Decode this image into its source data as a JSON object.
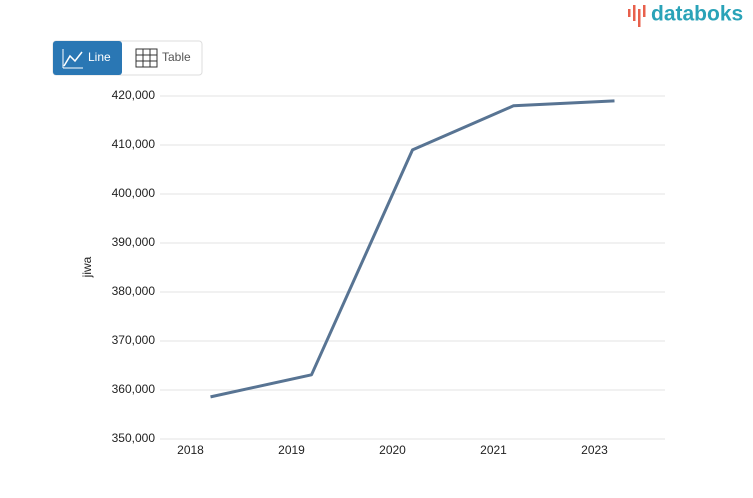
{
  "brand": "databoks",
  "controls": [
    "Line",
    "Table"
  ],
  "chart_data": {
    "type": "line",
    "y_label": "jiwa",
    "categories": [
      "2018",
      "2019",
      "2020",
      "2021",
      "2023"
    ],
    "series": [
      {
        "name": "jiwa",
        "color": "#587493",
        "values": [
          358600,
          363100,
          409000,
          418000,
          419000
        ]
      }
    ],
    "ylim": [
      350000,
      420000
    ],
    "yticks": [
      {
        "value": 350000,
        "label": "350,000"
      },
      {
        "value": 360000,
        "label": "360,000"
      },
      {
        "value": 370000,
        "label": "370,000"
      },
      {
        "value": 380000,
        "label": "380,000"
      },
      {
        "value": 390000,
        "label": "390,000"
      },
      {
        "value": 400000,
        "label": "400,000"
      },
      {
        "value": 410000,
        "label": "410,000"
      },
      {
        "value": 420000,
        "label": "420,000"
      }
    ],
    "grid": true
  }
}
